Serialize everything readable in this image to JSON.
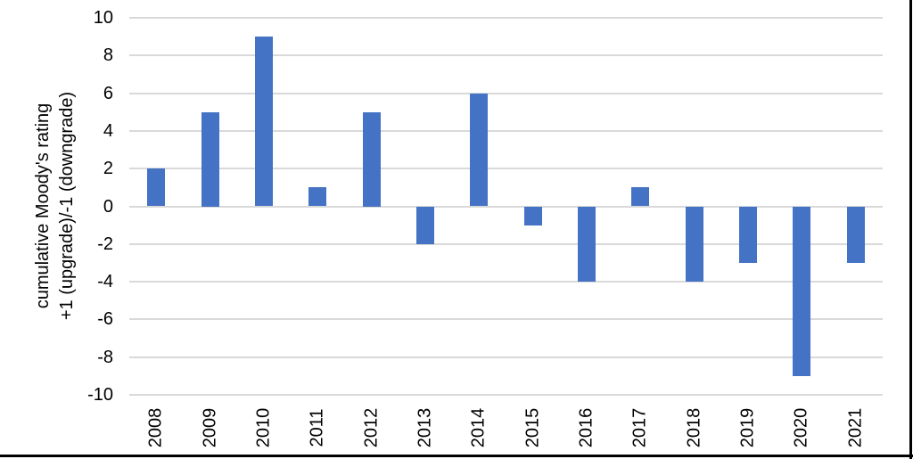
{
  "chart_data": {
    "type": "bar",
    "categories": [
      "2008",
      "2009",
      "2010",
      "2011",
      "2012",
      "2013",
      "2014",
      "2015",
      "2016",
      "2017",
      "2018",
      "2019",
      "2020",
      "2021"
    ],
    "values": [
      2,
      5,
      9,
      1,
      5,
      -2,
      6,
      -1,
      -4,
      1,
      -4,
      -3,
      -9,
      -3
    ],
    "title": "",
    "xlabel": "",
    "ylabel": "cumulative Moody's rating +1 (upgrade)/-1 (downgrade)",
    "ylabel_lines": [
      "cumulative Moody's rating",
      "+1 (upgrade)/-1 (downgrade)"
    ],
    "ylim": [
      -10,
      10
    ],
    "yticks": [
      10,
      8,
      6,
      4,
      2,
      0,
      -2,
      -4,
      -6,
      -8,
      -10
    ],
    "grid": true,
    "legend": "none",
    "bar_color": "#4472C4",
    "gridline_color": "#D9D9D9",
    "text_color": "#000000",
    "frame_color": "#000000"
  }
}
